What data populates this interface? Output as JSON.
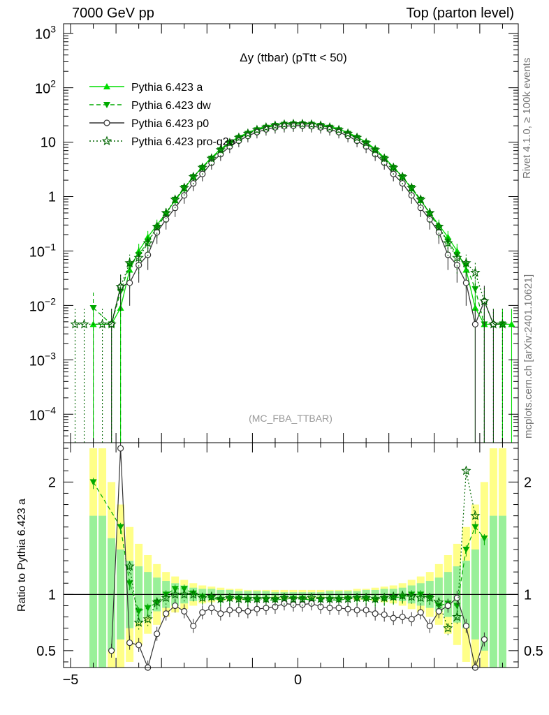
{
  "header": {
    "left": "7000 GeV pp",
    "right": "Top (parton level)"
  },
  "side": {
    "rivet": "Rivet 4.1.0, ≥ 100k events",
    "source": "mcplots.cern.ch [arXiv:2401.10621]"
  },
  "chart_data": {
    "type": "line",
    "title": "Δy (ttbar) (pTtt < 50)",
    "watermark": "(MC_FBA_TTBAR)",
    "xlabel": "",
    "ylabel": "",
    "xlim": [
      -5,
      5
    ],
    "ylim": [
      3e-05,
      1500
    ],
    "yscale": "log",
    "x_ticks": [
      -5,
      0
    ],
    "y_tick_labels": [
      "10^{-4}",
      "10^{-3}",
      "10^{-2}",
      "10^{-1}",
      "1",
      "10",
      "10^{2}",
      "10^{3}"
    ],
    "legend_position": "top-left",
    "ratio": {
      "ylabel": "Ratio to Pythia 6.423 a",
      "ylim": [
        0.35,
        2.35
      ],
      "y_ticks": [
        0.5,
        1,
        2
      ],
      "reference": 1,
      "band_x": [
        -4.5,
        -4.3,
        -4.1,
        -3.9,
        -3.7,
        -3.5,
        -3.3,
        -3.1,
        -2.9,
        -2.7,
        -2.5,
        -2.3,
        -2.1,
        -1.9,
        -1.7,
        -1.5,
        -1.3,
        -1.1,
        -0.9,
        -0.7,
        -0.5,
        -0.3,
        -0.1,
        0.1,
        0.3,
        0.5,
        0.7,
        0.9,
        1.1,
        1.3,
        1.5,
        1.7,
        1.9,
        2.1,
        2.3,
        2.5,
        2.7,
        2.9,
        3.1,
        3.3,
        3.5,
        3.7,
        3.9,
        4.1,
        4.3,
        4.5
      ],
      "band_inner": [
        1.7,
        1.7,
        1.5,
        1.4,
        1.3,
        1.25,
        1.2,
        1.15,
        1.12,
        1.1,
        1.08,
        1.06,
        1.05,
        1.05,
        1.04,
        1.04,
        1.03,
        1.03,
        1.03,
        1.03,
        1.02,
        1.02,
        1.02,
        1.02,
        1.02,
        1.02,
        1.03,
        1.03,
        1.03,
        1.03,
        1.04,
        1.04,
        1.05,
        1.05,
        1.06,
        1.08,
        1.1,
        1.12,
        1.15,
        1.2,
        1.25,
        1.3,
        1.4,
        1.5,
        1.7,
        1.7
      ],
      "band_outer": [
        2.3,
        2.3,
        2.0,
        1.8,
        1.6,
        1.45,
        1.35,
        1.27,
        1.2,
        1.16,
        1.13,
        1.1,
        1.08,
        1.07,
        1.06,
        1.05,
        1.05,
        1.04,
        1.04,
        1.04,
        1.04,
        1.04,
        1.04,
        1.04,
        1.04,
        1.04,
        1.04,
        1.04,
        1.04,
        1.05,
        1.05,
        1.06,
        1.07,
        1.08,
        1.1,
        1.13,
        1.16,
        1.2,
        1.27,
        1.35,
        1.45,
        1.6,
        1.8,
        2.0,
        2.3,
        2.3
      ]
    },
    "series": [
      {
        "name": "Pythia 6.423 a",
        "color": "#00dd00",
        "dash": "solid",
        "marker": "triangle-up",
        "x": [
          -4.9,
          -4.7,
          -4.5,
          -4.3,
          -4.1,
          -3.9,
          -3.7,
          -3.5,
          -3.3,
          -3.1,
          -2.9,
          -2.7,
          -2.5,
          -2.3,
          -2.1,
          -1.9,
          -1.7,
          -1.5,
          -1.3,
          -1.1,
          -0.9,
          -0.7,
          -0.5,
          -0.3,
          -0.1,
          0.1,
          0.3,
          0.5,
          0.7,
          0.9,
          1.1,
          1.3,
          1.5,
          1.7,
          1.9,
          2.1,
          2.3,
          2.5,
          2.7,
          2.9,
          3.1,
          3.3,
          3.5,
          3.7,
          3.9,
          4.1,
          4.3,
          4.5,
          4.7,
          4.9
        ],
        "y": [
          null,
          null,
          0.0045,
          null,
          0.0045,
          0.009,
          0.045,
          0.1,
          0.18,
          0.3,
          0.5,
          0.85,
          1.4,
          2.3,
          3.5,
          5.2,
          7.5,
          10,
          12.5,
          15,
          17.5,
          19.5,
          21,
          22,
          22.5,
          22.5,
          22,
          21,
          19.5,
          17.5,
          15,
          12.5,
          10,
          7.5,
          5.2,
          3.5,
          2.3,
          1.4,
          0.85,
          0.5,
          0.3,
          0.18,
          0.1,
          0.045,
          0.009,
          0.0045,
          null,
          0.0045,
          0.0045,
          null
        ],
        "ratio": [
          null,
          null,
          null,
          null,
          null,
          null,
          null,
          null,
          null,
          null,
          null,
          null,
          null,
          null,
          null,
          null,
          null,
          null,
          null,
          null,
          null,
          null,
          null,
          null,
          null,
          null,
          null,
          null,
          null,
          null,
          null,
          null,
          null,
          null,
          null,
          null,
          null,
          null,
          null,
          null,
          null,
          null,
          null,
          null,
          null,
          null,
          null,
          null,
          null,
          null
        ]
      },
      {
        "name": "Pythia 6.423 dw",
        "color": "#00aa00",
        "dash": "dashed",
        "marker": "triangle-down",
        "x": [
          -4.9,
          -4.7,
          -4.5,
          -4.3,
          -4.1,
          -3.9,
          -3.7,
          -3.5,
          -3.3,
          -3.1,
          -2.9,
          -2.7,
          -2.5,
          -2.3,
          -2.1,
          -1.9,
          -1.7,
          -1.5,
          -1.3,
          -1.1,
          -0.9,
          -0.7,
          -0.5,
          -0.3,
          -0.1,
          0.1,
          0.3,
          0.5,
          0.7,
          0.9,
          1.1,
          1.3,
          1.5,
          1.7,
          1.9,
          2.1,
          2.3,
          2.5,
          2.7,
          2.9,
          3.1,
          3.3,
          3.5,
          3.7,
          3.9,
          4.1,
          4.3,
          4.5,
          4.7,
          4.9
        ],
        "y": [
          null,
          null,
          0.009,
          null,
          0.0045,
          0.018,
          0.055,
          0.085,
          0.15,
          0.27,
          0.48,
          0.88,
          1.45,
          2.3,
          3.4,
          5.0,
          7.1,
          9.6,
          12.0,
          14.3,
          16.6,
          18.5,
          20.0,
          21.0,
          21.4,
          21.4,
          21.0,
          20.0,
          18.5,
          16.6,
          14.3,
          12.0,
          9.6,
          7.1,
          5.0,
          3.4,
          2.3,
          1.45,
          0.88,
          0.48,
          0.27,
          0.15,
          0.085,
          0.055,
          0.02,
          0.0045,
          null,
          0.0045,
          null,
          null
        ],
        "ratio": [
          null,
          null,
          2.0,
          null,
          null,
          1.6,
          1.1,
          0.85,
          0.88,
          0.93,
          1.0,
          1.05,
          1.05,
          1.01,
          0.98,
          0.97,
          0.95,
          0.96,
          0.96,
          0.95,
          0.95,
          0.95,
          0.95,
          0.96,
          0.96,
          0.96,
          0.95,
          0.95,
          0.95,
          0.95,
          0.96,
          0.96,
          0.96,
          0.95,
          0.96,
          0.97,
          0.98,
          1.0,
          1.0,
          0.97,
          0.9,
          0.92,
          0.9,
          1.4,
          1.6,
          1.5,
          null,
          null,
          null,
          null
        ]
      },
      {
        "name": "Pythia 6.423 p0",
        "color": "#333333",
        "dash": "solid",
        "marker": "circle-open",
        "x": [
          -4.9,
          -4.7,
          -4.5,
          -4.3,
          -4.1,
          -3.9,
          -3.7,
          -3.5,
          -3.3,
          -3.1,
          -2.9,
          -2.7,
          -2.5,
          -2.3,
          -2.1,
          -1.9,
          -1.7,
          -1.5,
          -1.3,
          -1.1,
          -0.9,
          -0.7,
          -0.5,
          -0.3,
          -0.1,
          0.1,
          0.3,
          0.5,
          0.7,
          0.9,
          1.1,
          1.3,
          1.5,
          1.7,
          1.9,
          2.1,
          2.3,
          2.5,
          2.7,
          2.9,
          3.1,
          3.3,
          3.5,
          3.7,
          3.9,
          4.1,
          4.3,
          4.5,
          4.7,
          4.9
        ],
        "y": [
          null,
          null,
          null,
          null,
          0.0045,
          0.022,
          0.026,
          0.055,
          0.085,
          0.22,
          0.38,
          0.62,
          1.05,
          1.75,
          2.6,
          4.2,
          6.0,
          8.3,
          10.6,
          13.0,
          15.3,
          17.2,
          18.7,
          19.6,
          20.1,
          20.1,
          19.6,
          18.7,
          17.2,
          15.3,
          13.0,
          10.6,
          8.3,
          6.0,
          4.2,
          2.6,
          1.75,
          1.05,
          0.62,
          0.38,
          0.22,
          0.085,
          0.055,
          0.026,
          0.0045,
          0.012,
          0.0045,
          null,
          null,
          null
        ],
        "ratio": [
          null,
          null,
          null,
          null,
          0.5,
          2.3,
          0.57,
          0.55,
          0.34,
          0.65,
          0.83,
          0.9,
          0.85,
          0.72,
          0.84,
          0.88,
          0.83,
          0.86,
          0.86,
          0.85,
          0.87,
          0.88,
          0.89,
          0.92,
          0.91,
          0.91,
          0.92,
          0.89,
          0.88,
          0.88,
          0.87,
          0.86,
          0.86,
          0.83,
          0.82,
          0.79,
          0.8,
          0.78,
          0.84,
          0.72,
          0.85,
          0.9,
          0.97,
          0.72,
          0.35,
          0.6,
          null,
          null,
          null,
          null
        ]
      },
      {
        "name": "Pythia 6.423 pro-q2o",
        "color": "#006600",
        "dash": "dotted",
        "marker": "star-open",
        "x": [
          -4.9,
          -4.7,
          -4.5,
          -4.3,
          -4.1,
          -3.9,
          -3.7,
          -3.5,
          -3.3,
          -3.1,
          -2.9,
          -2.7,
          -2.5,
          -2.3,
          -2.1,
          -1.9,
          -1.7,
          -1.5,
          -1.3,
          -1.1,
          -0.9,
          -0.7,
          -0.5,
          -0.3,
          -0.1,
          0.1,
          0.3,
          0.5,
          0.7,
          0.9,
          1.1,
          1.3,
          1.5,
          1.7,
          1.9,
          2.1,
          2.3,
          2.5,
          2.7,
          2.9,
          3.1,
          3.3,
          3.5,
          3.7,
          3.9,
          4.1,
          4.3,
          4.5,
          4.7,
          4.9
        ],
        "y": [
          0.0045,
          0.0045,
          null,
          0.0045,
          0.0045,
          0.022,
          0.06,
          0.075,
          0.14,
          0.28,
          0.5,
          0.88,
          1.45,
          2.3,
          3.4,
          5.0,
          7.2,
          9.7,
          12.1,
          14.4,
          16.8,
          18.7,
          20.2,
          21.2,
          21.6,
          21.6,
          21.2,
          20.2,
          18.7,
          16.8,
          14.4,
          12.1,
          9.7,
          7.2,
          5.0,
          3.4,
          2.3,
          1.45,
          0.88,
          0.5,
          0.28,
          0.14,
          0.075,
          0.06,
          0.04,
          0.012,
          0.0045,
          0.0045,
          null,
          null
        ],
        "ratio": [
          null,
          null,
          null,
          null,
          null,
          null,
          1.25,
          0.75,
          0.78,
          0.93,
          0.97,
          1.0,
          1.0,
          1.0,
          0.97,
          0.98,
          0.96,
          0.97,
          0.96,
          0.96,
          0.96,
          0.96,
          0.96,
          0.97,
          0.96,
          0.96,
          0.97,
          0.96,
          0.96,
          0.96,
          0.96,
          0.97,
          0.97,
          0.96,
          0.97,
          0.98,
          0.99,
          0.98,
          0.97,
          0.97,
          0.93,
          0.7,
          0.8,
          2.1,
          1.7,
          null,
          null,
          null,
          null,
          null
        ]
      }
    ]
  }
}
